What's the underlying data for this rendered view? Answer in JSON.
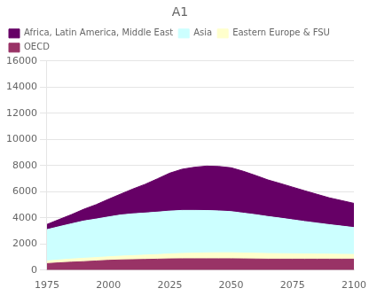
{
  "chart_data": {
    "type": "area",
    "title": "A1",
    "stacked": true,
    "x": [
      1975,
      1980,
      1985,
      1990,
      1995,
      2000,
      2005,
      2010,
      2015,
      2020,
      2025,
      2030,
      2035,
      2040,
      2045,
      2050,
      2055,
      2060,
      2065,
      2070,
      2075,
      2080,
      2085,
      2090,
      2095,
      2100
    ],
    "series": [
      {
        "name": "OECD",
        "color": "#993366",
        "values": [
          500,
          560,
          610,
          650,
          700,
          750,
          780,
          800,
          820,
          840,
          860,
          870,
          870,
          870,
          870,
          870,
          860,
          850,
          840,
          840,
          840,
          840,
          840,
          840,
          840,
          840
        ]
      },
      {
        "name": "Eastern Europe & FSU",
        "color": "#ffffcc",
        "values": [
          200,
          220,
          240,
          260,
          260,
          270,
          290,
          310,
          330,
          350,
          380,
          410,
          430,
          450,
          460,
          460,
          450,
          440,
          430,
          420,
          410,
          400,
          390,
          380,
          370,
          360
        ]
      },
      {
        "name": "Asia",
        "color": "#ccffff",
        "values": [
          2400,
          2550,
          2700,
          2850,
          2950,
          3050,
          3150,
          3200,
          3220,
          3250,
          3280,
          3290,
          3270,
          3240,
          3200,
          3150,
          3050,
          2950,
          2830,
          2720,
          2600,
          2480,
          2370,
          2260,
          2160,
          2060
        ]
      },
      {
        "name": "Africa, Latin America, Middle East",
        "color": "#660066",
        "values": [
          400,
          550,
          700,
          900,
          1100,
          1350,
          1600,
          1900,
          2200,
          2550,
          2900,
          3150,
          3300,
          3400,
          3400,
          3350,
          3200,
          3000,
          2800,
          2650,
          2500,
          2350,
          2200,
          2050,
          1950,
          1850
        ]
      }
    ],
    "xlim": [
      1975,
      2100
    ],
    "xticks": [
      1975,
      2000,
      2025,
      2050,
      2075,
      2100
    ],
    "ylim": [
      0,
      16000
    ],
    "yticks": [
      0,
      2000,
      4000,
      6000,
      8000,
      10000,
      12000,
      14000,
      16000
    ],
    "grid": "y",
    "legend": "upper left"
  }
}
